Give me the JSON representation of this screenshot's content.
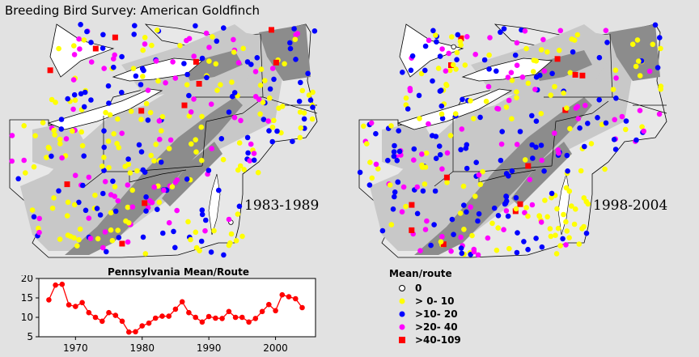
{
  "title": "Breeding Bird Survey: American Goldfinch",
  "maps": [
    {
      "period": "1983-1989"
    },
    {
      "period": "1998-2004"
    }
  ],
  "legend": {
    "title": "Mean/route",
    "items": [
      {
        "label": "0",
        "symbol": "open-circle",
        "color": "#ffffff"
      },
      {
        "label": "> 0- 10",
        "symbol": "circle",
        "color": "#ffff00"
      },
      {
        "label": ">10- 20",
        "symbol": "circle",
        "color": "#0000ff"
      },
      {
        "label": ">20- 40",
        "symbol": "circle",
        "color": "#ff00ff"
      },
      {
        "label": ">40-109",
        "symbol": "square",
        "color": "#ff0000"
      }
    ]
  },
  "chart_data": {
    "type": "line",
    "title": "Pennsylvania Mean/Route",
    "x": [
      1966,
      1967,
      1968,
      1969,
      1970,
      1971,
      1972,
      1973,
      1974,
      1975,
      1976,
      1977,
      1978,
      1979,
      1980,
      1981,
      1982,
      1983,
      1984,
      1985,
      1986,
      1987,
      1988,
      1989,
      1990,
      1991,
      1992,
      1993,
      1994,
      1995,
      1996,
      1997,
      1998,
      1999,
      2000,
      2001,
      2002,
      2003,
      2004
    ],
    "series": [
      {
        "color": "#ff0000",
        "values": [
          14.5,
          18.3,
          18.5,
          13.2,
          12.8,
          13.8,
          11.2,
          10.0,
          9.0,
          11.2,
          10.5,
          9.0,
          6.2,
          6.3,
          7.8,
          8.5,
          9.8,
          10.3,
          10.3,
          12.1,
          14.0,
          11.2,
          10.0,
          8.8,
          10.2,
          9.8,
          9.7,
          11.5,
          10.0,
          10.0,
          8.8,
          9.7,
          11.5,
          13.3,
          11.7,
          15.8,
          15.3,
          14.8,
          12.5
        ]
      }
    ],
    "xticks": [
      1970,
      1980,
      1990,
      2000
    ],
    "yticks": [
      5,
      10,
      15,
      20
    ],
    "xlim": [
      1964.5,
      2006
    ],
    "ylim": [
      5,
      20
    ]
  }
}
